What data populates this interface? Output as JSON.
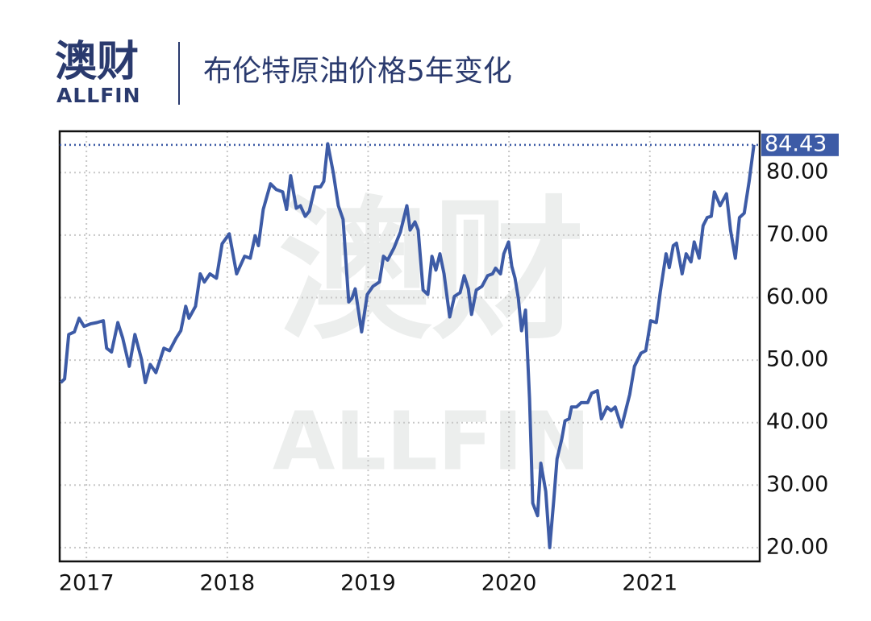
{
  "logo": {
    "name": "澳财",
    "sub": "ALLFIN"
  },
  "chart_data": {
    "type": "line",
    "title": "布伦特原油价格5年变化",
    "color": "#3d5ba6",
    "grid": true,
    "x": [
      2016.817,
      2016.845,
      2016.874,
      2016.914,
      2016.948,
      2016.983,
      2017.029,
      2017.074,
      2017.12,
      2017.143,
      2017.178,
      2017.223,
      2017.258,
      2017.304,
      2017.344,
      2017.39,
      2017.418,
      2017.453,
      2017.493,
      2017.55,
      2017.59,
      2017.636,
      2017.67,
      2017.705,
      2017.728,
      2017.774,
      2017.808,
      2017.837,
      2017.877,
      2017.923,
      2017.963,
      2018.014,
      2018.066,
      2018.123,
      2018.163,
      2018.198,
      2018.221,
      2018.255,
      2018.307,
      2018.347,
      2018.393,
      2018.421,
      2018.45,
      2018.49,
      2018.519,
      2018.553,
      2018.582,
      2018.622,
      2018.662,
      2018.685,
      2018.713,
      2018.754,
      2018.788,
      2018.822,
      2018.862,
      2018.885,
      2018.908,
      2018.954,
      2018.994,
      2019.034,
      2019.08,
      2019.109,
      2019.138,
      2019.183,
      2019.229,
      2019.275,
      2019.298,
      2019.332,
      2019.355,
      2019.39,
      2019.424,
      2019.453,
      2019.481,
      2019.51,
      2019.539,
      2019.579,
      2019.613,
      2019.653,
      2019.682,
      2019.711,
      2019.734,
      2019.768,
      2019.808,
      2019.848,
      2019.883,
      2019.905,
      2019.94,
      2019.963,
      2019.997,
      2020.02,
      2020.043,
      2020.066,
      2020.089,
      2020.117,
      2020.146,
      2020.169,
      2020.203,
      2020.226,
      2020.261,
      2020.289,
      2020.318,
      2020.341,
      2020.375,
      2020.398,
      2020.427,
      2020.444,
      2020.479,
      2020.513,
      2020.559,
      2020.587,
      2020.628,
      2020.656,
      2020.696,
      2020.725,
      2020.754,
      2020.799,
      2020.857,
      2020.891,
      2020.937,
      2020.971,
      2021.006,
      2021.046,
      2021.074,
      2021.115,
      2021.138,
      2021.166,
      2021.189,
      2021.229,
      2021.258,
      2021.292,
      2021.315,
      2021.35,
      2021.378,
      2021.407,
      2021.436,
      2021.458,
      2021.499,
      2021.544,
      2021.573,
      2021.607,
      2021.636,
      2021.67,
      2021.705,
      2021.739
    ],
    "values": [
      46.4,
      47,
      54.1,
      54.5,
      56.7,
      55.4,
      55.8,
      56,
      56.3,
      51.9,
      51.3,
      56,
      53.5,
      49,
      54.1,
      50.2,
      46.4,
      49.3,
      48,
      51.9,
      51.5,
      53.5,
      54.7,
      58.6,
      56.7,
      58.6,
      63.8,
      62.5,
      63.8,
      63.1,
      68.6,
      70.2,
      63.8,
      66.6,
      66.3,
      69.9,
      68.3,
      74.1,
      78.2,
      77.3,
      76.9,
      74.1,
      79.5,
      74.3,
      74.7,
      73,
      73.8,
      77.7,
      77.7,
      78.6,
      84.6,
      79.8,
      74.7,
      72.5,
      59.3,
      59.9,
      61.4,
      54.5,
      60.5,
      61.8,
      62.5,
      66.6,
      66,
      67.9,
      70.5,
      74.7,
      70.8,
      72.1,
      70.8,
      61.2,
      60.5,
      66.6,
      64.4,
      67,
      63.8,
      56.9,
      60.2,
      60.8,
      63.5,
      61.4,
      57.3,
      61.2,
      61.8,
      63.5,
      63.8,
      64.7,
      63.8,
      67,
      68.9,
      65,
      63.1,
      59.9,
      54.7,
      58,
      43.8,
      27.1,
      25.1,
      33.5,
      29,
      20,
      27.7,
      34.2,
      37.4,
      40.3,
      40.6,
      42.5,
      42.5,
      43.2,
      43.2,
      44.7,
      45.1,
      40.6,
      42.5,
      41.9,
      42.5,
      39.3,
      44.5,
      49,
      51.1,
      51.5,
      56.3,
      56,
      60.9,
      67,
      64.8,
      68.3,
      68.7,
      63.8,
      67,
      65.7,
      68.9,
      66.3,
      71.5,
      72.8,
      73,
      76.9,
      74.7,
      76.6,
      70.8,
      66.3,
      72.8,
      73.5,
      78.6,
      84.43
    ],
    "xlim": [
      2016.81,
      2021.78
    ],
    "xticks": [
      2017,
      2018,
      2019,
      2020,
      2021
    ],
    "ylim": [
      17.8,
      86.6
    ],
    "yticks": [
      {
        "value": 20,
        "label": "20.00"
      },
      {
        "value": 30,
        "label": "30.00"
      },
      {
        "value": 40,
        "label": "40.00"
      },
      {
        "value": 50,
        "label": "50.00"
      },
      {
        "value": 60,
        "label": "60.00"
      },
      {
        "value": 70,
        "label": "70.00"
      },
      {
        "value": 80,
        "label": "80.00"
      }
    ]
  }
}
